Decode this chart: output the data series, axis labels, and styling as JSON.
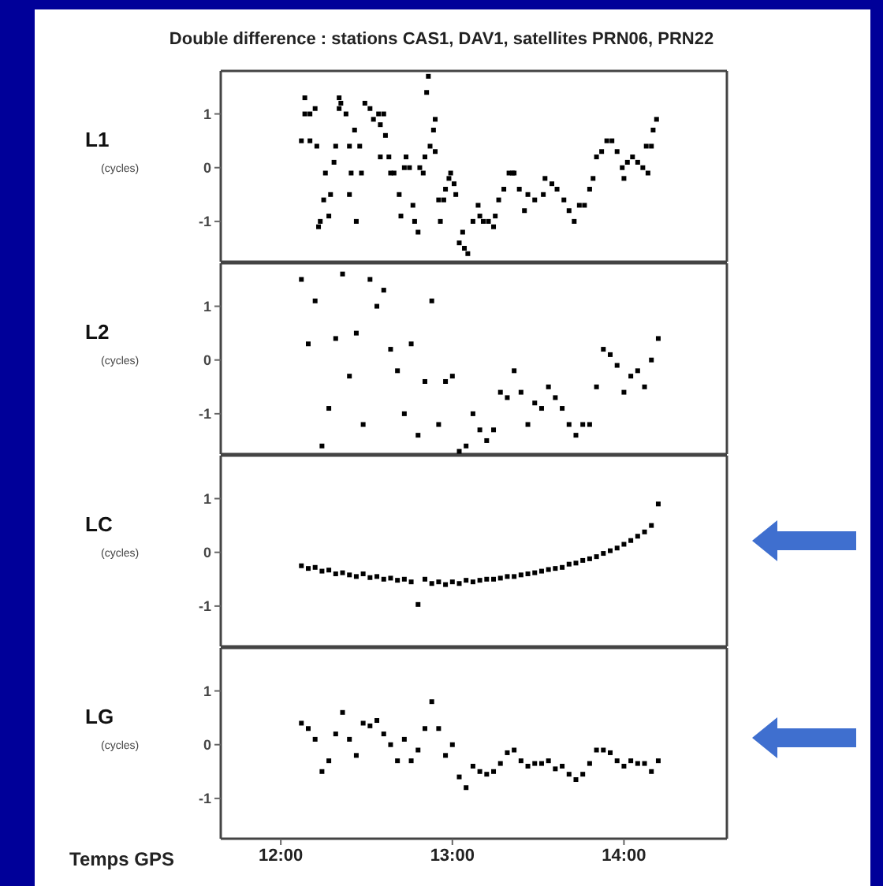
{
  "chart_data": [
    {
      "type": "scatter",
      "title": "Double difference : stations CAS1, DAV1, satellites PRN06, PRN22",
      "ylabel": "L1 (cycles)",
      "xlim": [
        11.65,
        14.6
      ],
      "ylim": [
        -1.75,
        1.8
      ],
      "yticks": [
        -1,
        0,
        1
      ],
      "tick_labels": "y",
      "marker": "square",
      "x": [
        12.12,
        12.14,
        12.14,
        12.17,
        12.17,
        12.2,
        12.21,
        12.22,
        12.23,
        12.25,
        12.26,
        12.28,
        12.29,
        12.31,
        12.32,
        12.34,
        12.34,
        12.35,
        12.38,
        12.4,
        12.4,
        12.41,
        12.43,
        12.44,
        12.46,
        12.47,
        12.49,
        12.52,
        12.54,
        12.57,
        12.58,
        12.58,
        12.6,
        12.61,
        12.63,
        12.64,
        12.66,
        12.69,
        12.7,
        12.72,
        12.73,
        12.75,
        12.77,
        12.78,
        12.8,
        12.81,
        12.83,
        12.84,
        12.85,
        12.86,
        12.87,
        12.89,
        12.9,
        12.9,
        12.92,
        12.93,
        12.95,
        12.96,
        12.98,
        12.99,
        13.01,
        13.02,
        13.04,
        13.06,
        13.07,
        13.09,
        13.12,
        13.15,
        13.16,
        13.18,
        13.21,
        13.24,
        13.25,
        13.27,
        13.3,
        13.33,
        13.35,
        13.36,
        13.39,
        13.42,
        13.44,
        13.48,
        13.53,
        13.54,
        13.58,
        13.61,
        13.65,
        13.68,
        13.71,
        13.74,
        13.77,
        13.8,
        13.82,
        13.84,
        13.87,
        13.9,
        13.93,
        13.96,
        13.99,
        14.0,
        14.02,
        14.05,
        14.08,
        14.11,
        14.13,
        14.14,
        14.16,
        14.17,
        14.19
      ],
      "series": [
        {
          "color": "#000000",
          "values": [
            0.5,
            1.3,
            1.0,
            1.0,
            0.5,
            1.1,
            0.4,
            -1.1,
            -1.0,
            -0.6,
            -0.1,
            -0.9,
            -0.5,
            0.1,
            0.4,
            1.3,
            1.1,
            1.2,
            1.0,
            0.4,
            -0.5,
            -0.1,
            0.7,
            -1.0,
            0.4,
            -0.1,
            1.2,
            1.1,
            0.9,
            1.0,
            0.8,
            0.2,
            1.0,
            0.6,
            0.2,
            -0.1,
            -0.1,
            -0.5,
            -0.9,
            0.0,
            0.2,
            0.0,
            -0.7,
            -1.0,
            -1.2,
            0.0,
            -0.1,
            0.2,
            1.4,
            1.7,
            0.4,
            0.7,
            0.9,
            0.3,
            -0.6,
            -1.0,
            -0.6,
            -0.4,
            -0.2,
            -0.1,
            -0.3,
            -0.5,
            -1.4,
            -1.2,
            -1.5,
            -1.6,
            -1.0,
            -0.7,
            -0.9,
            -1.0,
            -1.0,
            -1.1,
            -0.9,
            -0.6,
            -0.4,
            -0.1,
            -0.1,
            -0.1,
            -0.4,
            -0.8,
            -0.5,
            -0.6,
            -0.5,
            -0.2,
            -0.3,
            -0.4,
            -0.6,
            -0.8,
            -1.0,
            -0.7,
            -0.7,
            -0.4,
            -0.2,
            0.2,
            0.3,
            0.5,
            0.5,
            0.3,
            0.0,
            -0.2,
            0.1,
            0.2,
            0.1,
            0.0,
            0.4,
            -0.1,
            0.4,
            0.7,
            0.9
          ]
        }
      ]
    },
    {
      "type": "scatter",
      "ylabel": "L2 (cycles)",
      "xlim": [
        11.65,
        14.6
      ],
      "ylim": [
        -1.75,
        1.8
      ],
      "yticks": [
        -1,
        0,
        1
      ],
      "tick_labels": "y",
      "marker": "square",
      "x": [
        12.12,
        12.16,
        12.2,
        12.24,
        12.28,
        12.32,
        12.36,
        12.4,
        12.44,
        12.48,
        12.52,
        12.56,
        12.6,
        12.64,
        12.68,
        12.72,
        12.76,
        12.8,
        12.84,
        12.88,
        12.92,
        12.96,
        13,
        13.04,
        13.08,
        13.12,
        13.16,
        13.2,
        13.24,
        13.28,
        13.32,
        13.36,
        13.4,
        13.44,
        13.48,
        13.52,
        13.56,
        13.6,
        13.64,
        13.68,
        13.72,
        13.76,
        13.8,
        13.84,
        13.88,
        13.92,
        13.96,
        14,
        14.04,
        14.08,
        14.12,
        14.16,
        14.2
      ],
      "series": [
        {
          "color": "#000000",
          "values": [
            1.5,
            0.3,
            1.1,
            -1.6,
            -0.9,
            0.4,
            1.6,
            -0.3,
            0.5,
            -1.2,
            1.5,
            1.0,
            1.3,
            0.2,
            -0.2,
            -1.0,
            0.3,
            -1.4,
            -0.4,
            1.1,
            -1.2,
            -0.4,
            -0.3,
            -1.7,
            -1.6,
            -1.0,
            -1.3,
            -1.5,
            -1.3,
            -0.6,
            -0.7,
            -0.2,
            -0.6,
            -1.2,
            -0.8,
            -0.9,
            -0.5,
            -0.7,
            -0.9,
            -1.2,
            -1.4,
            -1.2,
            -1.2,
            -0.5,
            0.2,
            0.1,
            -0.1,
            -0.6,
            -0.3,
            -0.2,
            -0.5,
            0.0,
            0.4
          ]
        }
      ]
    },
    {
      "type": "scatter",
      "ylabel": "LC (cycles)",
      "xlim": [
        11.65,
        14.6
      ],
      "ylim": [
        -1.75,
        1.8
      ],
      "yticks": [
        -1,
        0,
        1
      ],
      "tick_labels": "y",
      "marker": "square",
      "x": [
        12.12,
        12.16,
        12.2,
        12.24,
        12.28,
        12.32,
        12.36,
        12.4,
        12.44,
        12.48,
        12.52,
        12.56,
        12.6,
        12.64,
        12.68,
        12.72,
        12.76,
        12.8,
        12.84,
        12.88,
        12.92,
        12.96,
        13,
        13.04,
        13.08,
        13.12,
        13.16,
        13.2,
        13.24,
        13.28,
        13.32,
        13.36,
        13.4,
        13.44,
        13.48,
        13.52,
        13.56,
        13.6,
        13.64,
        13.68,
        13.72,
        13.76,
        13.8,
        13.84,
        13.88,
        13.92,
        13.96,
        14,
        14.04,
        14.08,
        14.12,
        14.16,
        14.2
      ],
      "series": [
        {
          "color": "#000000",
          "values": [
            -0.25,
            -0.3,
            -0.28,
            -0.35,
            -0.33,
            -0.4,
            -0.38,
            -0.42,
            -0.45,
            -0.4,
            -0.47,
            -0.45,
            -0.5,
            -0.48,
            -0.52,
            -0.5,
            -0.55,
            -0.97,
            -0.5,
            -0.58,
            -0.55,
            -0.6,
            -0.55,
            -0.58,
            -0.52,
            -0.55,
            -0.52,
            -0.5,
            -0.5,
            -0.48,
            -0.45,
            -0.45,
            -0.42,
            -0.4,
            -0.38,
            -0.35,
            -0.32,
            -0.3,
            -0.28,
            -0.22,
            -0.2,
            -0.15,
            -0.12,
            -0.08,
            -0.02,
            0.03,
            0.08,
            0.15,
            0.22,
            0.3,
            0.38,
            0.5,
            0.9
          ]
        }
      ]
    },
    {
      "type": "scatter",
      "ylabel": "LG (cycles)",
      "xlabel": "Temps GPS",
      "xlim": [
        11.65,
        14.6
      ],
      "xticks": [
        {
          "value": 12,
          "label": "12:00"
        },
        {
          "value": 13,
          "label": "13:00"
        },
        {
          "value": 14,
          "label": "14:00"
        }
      ],
      "ylim": [
        -1.75,
        1.8
      ],
      "yticks": [
        -1,
        0,
        1
      ],
      "marker": "square",
      "x": [
        12.12,
        12.16,
        12.2,
        12.24,
        12.28,
        12.32,
        12.36,
        12.4,
        12.44,
        12.48,
        12.52,
        12.56,
        12.6,
        12.64,
        12.68,
        12.72,
        12.76,
        12.8,
        12.84,
        12.88,
        12.92,
        12.96,
        13,
        13.04,
        13.08,
        13.12,
        13.16,
        13.2,
        13.24,
        13.28,
        13.32,
        13.36,
        13.4,
        13.44,
        13.48,
        13.52,
        13.56,
        13.6,
        13.64,
        13.68,
        13.72,
        13.76,
        13.8,
        13.84,
        13.88,
        13.92,
        13.96,
        14,
        14.04,
        14.08,
        14.12,
        14.16,
        14.2
      ],
      "series": [
        {
          "color": "#000000",
          "values": [
            0.4,
            0.3,
            0.1,
            -0.5,
            -0.3,
            0.2,
            0.6,
            0.1,
            -0.2,
            0.4,
            0.35,
            0.45,
            0.2,
            0.0,
            -0.3,
            0.1,
            -0.3,
            -0.1,
            0.3,
            0.8,
            0.3,
            -0.2,
            0.0,
            -0.6,
            -0.8,
            -0.4,
            -0.5,
            -0.55,
            -0.5,
            -0.35,
            -0.15,
            -0.1,
            -0.3,
            -0.4,
            -0.35,
            -0.35,
            -0.3,
            -0.45,
            -0.4,
            -0.55,
            -0.65,
            -0.55,
            -0.35,
            -0.1,
            -0.1,
            -0.15,
            -0.3,
            -0.4,
            -0.3,
            -0.35,
            -0.35,
            -0.5,
            -0.3
          ]
        }
      ]
    }
  ]
}
